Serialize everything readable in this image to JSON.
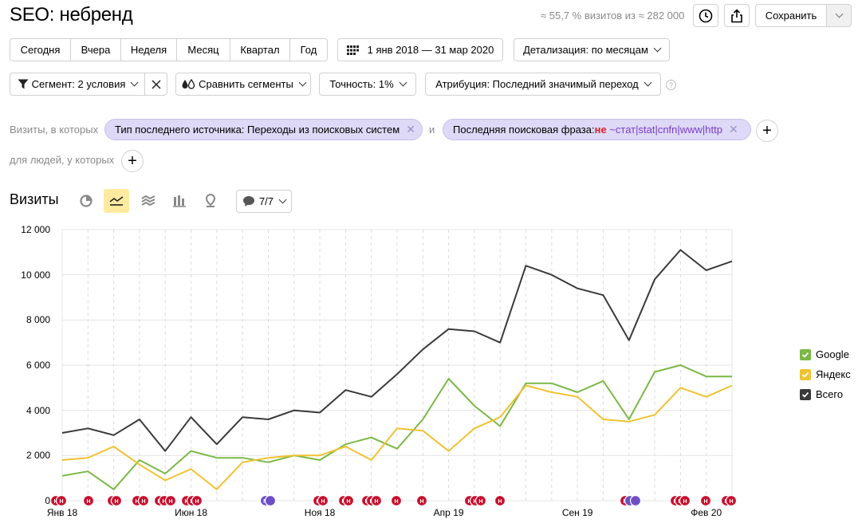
{
  "header": {
    "title": "SEO: небренд",
    "stats": "≈ 55,7 % визитов из ≈ 282 000",
    "save_label": "Сохранить"
  },
  "periods": [
    "Сегодня",
    "Вчера",
    "Неделя",
    "Месяц",
    "Квартал",
    "Год"
  ],
  "date_range": "1 янв 2018 — 31 мар 2020",
  "detail": "Детализация: по месяцам",
  "segment": "Сегмент: 2 условия",
  "compare": "Сравнить сегменты",
  "accuracy": "Точность: 1%",
  "attribution": "Атрибуция: Последний значимый переход",
  "filters": {
    "visits_label": "Визиты, в которых",
    "cond1": "Тип последнего источника: Переходы из поисковых систем",
    "and_label": "и",
    "cond2_prefix": "Последняя поисковая фраза: ",
    "cond2_not": "не",
    "cond2_value": " ~стат|stat|cnfn|www|http",
    "people_label": "для людей, у которых"
  },
  "chart_header": {
    "title": "Визиты",
    "annotations_count": "7/7"
  },
  "chart_data": {
    "type": "line",
    "categories": [
      "Янв 18",
      "Фев 18",
      "Мар 18",
      "Апр 18",
      "Май 18",
      "Июн 18",
      "Июл 18",
      "Авг 18",
      "Сен 18",
      "Окт 18",
      "Ноя 18",
      "Дек 18",
      "Янв 19",
      "Фев 19",
      "Мар 19",
      "Апр 19",
      "Май 19",
      "Июн 19",
      "Июл 19",
      "Авг 19",
      "Сен 19",
      "Окт 19",
      "Ноя 19",
      "Дек 19",
      "Янв 20",
      "Фев 20",
      "Мар 20"
    ],
    "x_tick_labels": [
      "Янв 18",
      "Июн 18",
      "Ноя 18",
      "Апр 19",
      "Сен 19",
      "Фев 20"
    ],
    "series": [
      {
        "name": "Google",
        "color": "#7bb845",
        "values": [
          1100,
          1300,
          500,
          1800,
          1200,
          2200,
          1900,
          1900,
          1700,
          2000,
          1800,
          2500,
          2800,
          2300,
          3600,
          5400,
          4200,
          3300,
          5200,
          5200,
          4800,
          5300,
          3600,
          5700,
          6000,
          5500,
          5500
        ]
      },
      {
        "name": "Яндекс",
        "color": "#f0c232",
        "values": [
          1800,
          1900,
          2400,
          1600,
          900,
          1400,
          500,
          1700,
          1900,
          2000,
          2000,
          2400,
          1800,
          3200,
          3100,
          2200,
          3200,
          3700,
          5100,
          4800,
          4600,
          3600,
          3500,
          3800,
          5000,
          4600,
          5100
        ]
      },
      {
        "name": "Всего",
        "color": "#3a3a3a",
        "values": [
          3000,
          3200,
          2900,
          3600,
          2200,
          3700,
          2500,
          3700,
          3600,
          4000,
          3900,
          4900,
          4600,
          5600,
          6700,
          7600,
          7500,
          7000,
          10400,
          10000,
          9400,
          9100,
          7100,
          9800,
          11100,
          10200,
          10600
        ]
      }
    ],
    "ylim": [
      0,
      12000
    ],
    "y_ticks": [
      "0",
      "2 000",
      "4 000",
      "6 000",
      "8 000",
      "10 000",
      "12 000"
    ],
    "grid": true,
    "legend_position": "right"
  },
  "colors": {
    "accent_yellow": "#ffeba0",
    "chip_bg": "#ddd9f6",
    "marker_red": "#c8102e",
    "marker_purple": "#6e4fc4"
  }
}
